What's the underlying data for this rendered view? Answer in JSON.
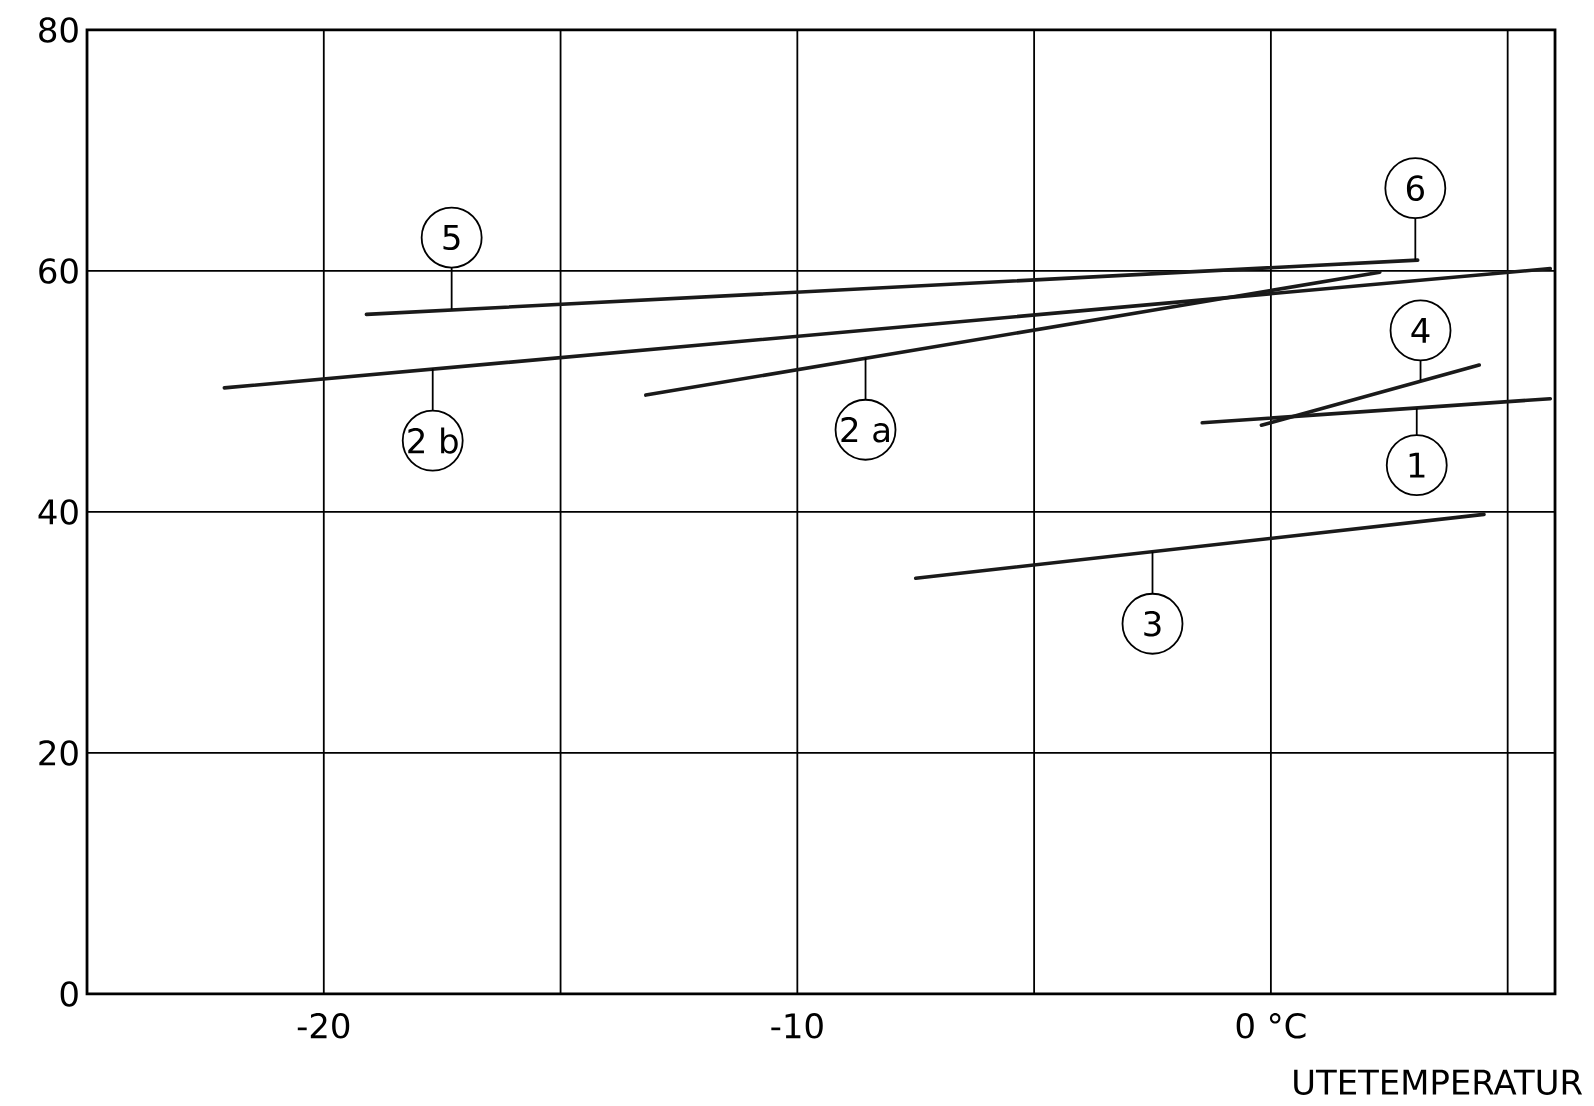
{
  "chart_data": {
    "type": "line",
    "xlabel": "UTETEMPERATUR",
    "xlim": [
      -25,
      6
    ],
    "ylim": [
      0,
      80
    ],
    "xticks": [
      -20,
      {
        "value": -15,
        "label": null
      },
      -10,
      {
        "value": -5,
        "label": null
      },
      {
        "value": 0,
        "label": "0 °C"
      },
      {
        "value": 5,
        "label": null
      }
    ],
    "yticks": [
      0,
      20,
      40,
      60,
      80
    ],
    "grid": true,
    "marker": "none",
    "line_style": "solid",
    "series": [
      {
        "color": "#1a1a1a",
        "x": [
          -19.1,
          3.1
        ],
        "values": [
          56.4,
          60.9
        ]
      },
      {
        "color": "#1a1a1a",
        "x": [
          -22.1,
          5.9
        ],
        "values": [
          50.3,
          60.2
        ]
      },
      {
        "color": "#1a1a1a",
        "x": [
          -13.2,
          2.3
        ],
        "values": [
          49.7,
          59.9
        ]
      },
      {
        "color": "#1a1a1a",
        "x": [
          -0.2,
          4.4
        ],
        "values": [
          47.2,
          52.2
        ]
      },
      {
        "color": "#1a1a1a",
        "x": [
          -1.45,
          5.9
        ],
        "values": [
          47.4,
          49.4
        ]
      },
      {
        "color": "#1a1a1a",
        "x": [
          -7.5,
          4.5
        ],
        "values": [
          34.5,
          39.8
        ]
      }
    ],
    "annotations": [
      {
        "text": "5",
        "x": -17.3,
        "y": 56.8
      },
      {
        "text": "2 b",
        "x": -17.7,
        "y": 51.9
      },
      {
        "text": "2 a",
        "x": -8.56,
        "y": 52.8
      },
      {
        "text": "6",
        "x": 3.05,
        "y": 60.9
      },
      {
        "text": "4",
        "x": 3.16,
        "y": 50.9
      },
      {
        "text": "1",
        "x": 3.08,
        "y": 48.6
      },
      {
        "text": "3",
        "x": -2.5,
        "y": 36.7
      }
    ]
  }
}
